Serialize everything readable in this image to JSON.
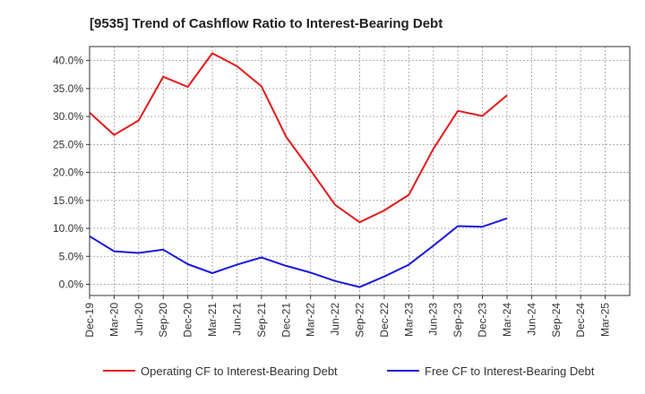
{
  "chart_data": {
    "type": "line",
    "title": "[9535]  Trend of Cashflow Ratio to Interest-Bearing Debt",
    "x": [
      "Dec-19",
      "Mar-20",
      "Jun-20",
      "Sep-20",
      "Dec-20",
      "Mar-21",
      "Jun-21",
      "Sep-21",
      "Dec-21",
      "Mar-22",
      "Jun-22",
      "Sep-22",
      "Dec-22",
      "Mar-23",
      "Jun-23",
      "Sep-23",
      "Dec-23",
      "Mar-24",
      "Jun-24",
      "Sep-24",
      "Dec-24",
      "Mar-25"
    ],
    "yticks": [
      "0.0%",
      "5.0%",
      "10.0%",
      "15.0%",
      "20.0%",
      "25.0%",
      "30.0%",
      "35.0%",
      "40.0%"
    ],
    "ylim": [
      -2.0,
      42.5
    ],
    "grid": true,
    "legend_position": "bottom",
    "series": [
      {
        "name": "Operating CF to Interest-Bearing Debt",
        "color": "#e31a1c",
        "values": [
          30.7,
          26.7,
          29.3,
          37.1,
          35.3,
          41.3,
          39.0,
          35.4,
          26.4,
          20.4,
          14.2,
          11.1,
          13.2,
          16.0,
          24.2,
          31.0,
          30.1,
          33.8,
          null,
          null,
          null,
          null
        ]
      },
      {
        "name": "Free CF to Interest-Bearing Debt",
        "color": "#1a1adc",
        "values": [
          8.6,
          5.9,
          5.6,
          6.2,
          3.6,
          2.0,
          3.5,
          4.8,
          3.3,
          2.1,
          0.6,
          -0.5,
          1.4,
          3.5,
          6.9,
          10.4,
          10.3,
          11.8,
          null,
          null,
          null,
          null
        ]
      }
    ]
  }
}
